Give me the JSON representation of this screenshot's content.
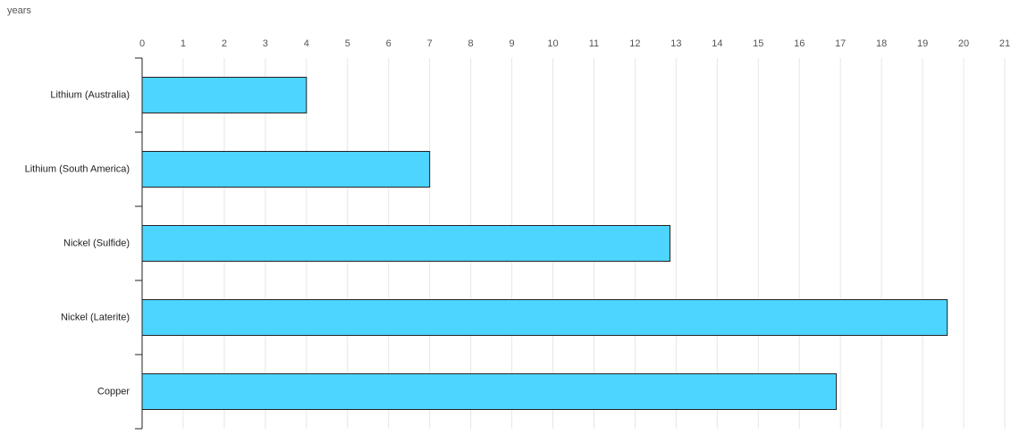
{
  "chart_data": {
    "type": "barh",
    "x_label": "years",
    "categories": [
      "Lithium (Australia)",
      "Lithium (South America)",
      "Nickel (Sulfide)",
      "Nickel (Laterite)",
      "Copper"
    ],
    "values": [
      4,
      7,
      12.85,
      19.6,
      16.9
    ],
    "color": "#4dd4ff",
    "xlim": [
      0,
      21
    ],
    "xticks": [
      0,
      1,
      2,
      3,
      4,
      5,
      6,
      7,
      8,
      9,
      10,
      11,
      12,
      13,
      14,
      15,
      16,
      17,
      18,
      19,
      20,
      21
    ],
    "grid": true
  }
}
